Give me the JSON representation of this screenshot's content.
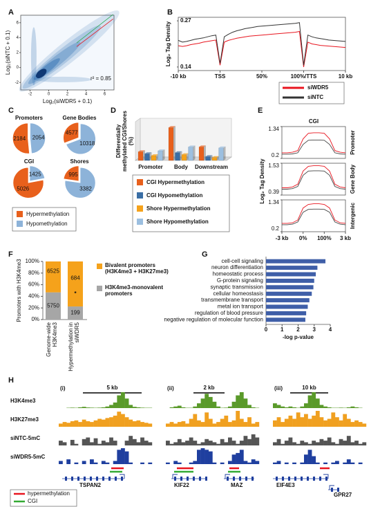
{
  "chart_data": [
    {
      "label": "A",
      "type": "density",
      "xlabel": "Log₂(siWDR5 + 0.1)",
      "ylabel": "Log₂(siNTC + 0.1)",
      "xlim": [
        -3,
        7
      ],
      "ylim": [
        -3,
        7
      ],
      "xticks": [
        -2,
        0,
        2,
        4,
        6
      ],
      "yticks": [
        -2,
        0,
        2,
        4,
        6
      ],
      "annotation": "r² = 0.85"
    },
    {
      "label": "B",
      "type": "line",
      "ylabel": "Log₂ Tag Density",
      "x": [
        0,
        0.1,
        0.2,
        0.3,
        0.4,
        0.5,
        0.6,
        0.7,
        0.8,
        0.9,
        1,
        1.1,
        1.2,
        1.3,
        1.4,
        1.5,
        1.6,
        1.7,
        1.8,
        1.9,
        2,
        2.1,
        2.2,
        2.3,
        2.4,
        2.5,
        2.6,
        2.7,
        2.8,
        2.9,
        3,
        3.1,
        3.2,
        3.3,
        3.4,
        3.5,
        3.6,
        3.7,
        3.8,
        3.9,
        4
      ],
      "xlim": [
        0,
        4
      ],
      "xticks": [
        {
          "value": 0,
          "label": "-10 kb"
        },
        {
          "value": 1,
          "label": "TSS"
        },
        {
          "value": 2,
          "label": "50%"
        },
        {
          "value": 3,
          "label": "100%/TTS"
        },
        {
          "value": 4,
          "label": "10 kb"
        }
      ],
      "ylim": [
        0.13,
        0.28
      ],
      "yticks": [
        0.14,
        0.27
      ],
      "series": [
        {
          "name": "siWDR5",
          "color": "#e8141e",
          "values": [
            0.2,
            0.198,
            0.2,
            0.203,
            0.205,
            0.207,
            0.21,
            0.212,
            0.214,
            0.216,
            0.145,
            0.21,
            0.215,
            0.218,
            0.221,
            0.223,
            0.225,
            0.227,
            0.228,
            0.229,
            0.23,
            0.231,
            0.232,
            0.233,
            0.234,
            0.235,
            0.236,
            0.237,
            0.238,
            0.24,
            0.14,
            0.21,
            0.205,
            0.203,
            0.201,
            0.2,
            0.199,
            0.198,
            0.197,
            0.196,
            0.195
          ]
        },
        {
          "name": "siNTC",
          "color": "#333333",
          "values": [
            0.215,
            0.21,
            0.212,
            0.215,
            0.218,
            0.22,
            0.222,
            0.225,
            0.228,
            0.23,
            0.15,
            0.225,
            0.232,
            0.238,
            0.242,
            0.245,
            0.248,
            0.25,
            0.252,
            0.254,
            0.255,
            0.256,
            0.257,
            0.258,
            0.259,
            0.26,
            0.261,
            0.262,
            0.263,
            0.265,
            0.145,
            0.23,
            0.225,
            0.222,
            0.22,
            0.218,
            0.216,
            0.215,
            0.214,
            0.213,
            0.212
          ]
        }
      ]
    },
    {
      "label": "C",
      "type": "pie",
      "series_names": [
        "Hypermethylation",
        "Hypomethylation"
      ],
      "colors": [
        "#e8601c",
        "#8db3d9"
      ],
      "pies": [
        {
          "title": "Promoters",
          "values": [
            2184,
            2054
          ]
        },
        {
          "title": "Gene Bodies",
          "values": [
            4577,
            10318
          ]
        },
        {
          "title": "CGI",
          "values": [
            5026,
            1425
          ]
        },
        {
          "title": "Shores",
          "values": [
            995,
            3382
          ]
        }
      ]
    },
    {
      "label": "D",
      "type": "bar3d",
      "ylabel": "Differentially methylated CGI/Shores (%)",
      "categories": [
        "Promoter",
        "Body",
        "Downstream"
      ],
      "ylim": [
        0,
        40
      ],
      "series": [
        {
          "name": "CGI Hypermethylation",
          "color": "#e8601c",
          "values": [
            9,
            34,
            14
          ]
        },
        {
          "name": "CGI Hypomethylation",
          "color": "#3a6ea5",
          "values": [
            7,
            8,
            4
          ]
        },
        {
          "name": "Shore Hypermethylation",
          "color": "#f5a21b",
          "values": [
            5,
            6,
            3
          ]
        },
        {
          "name": "Shore Hypomethylation",
          "color": "#9cbfe0",
          "values": [
            10,
            14,
            13
          ]
        }
      ]
    },
    {
      "label": "E",
      "type": "line",
      "title": "CGI",
      "ylabel": "Log₂ Tag Density",
      "x": [
        0,
        0.25,
        0.5,
        0.75,
        1,
        1.25,
        1.5,
        1.75,
        2,
        2.25,
        2.5,
        2.75,
        3
      ],
      "xlim": [
        0,
        3
      ],
      "xticks": [
        {
          "value": 0,
          "label": "-3 kb"
        },
        {
          "value": 1,
          "label": "0%"
        },
        {
          "value": 2,
          "label": "100%"
        },
        {
          "value": 3,
          "label": "3 kb"
        }
      ],
      "panels": [
        {
          "name": "Promoter",
          "ylim": [
            0.2,
            1.34
          ],
          "yticks": [
            0.2,
            1.34
          ],
          "series": [
            {
              "color": "#e8141e",
              "values": [
                0.4,
                0.4,
                0.42,
                0.48,
                0.9,
                1.1,
                1.12,
                1.12,
                1.1,
                0.9,
                0.48,
                0.42,
                0.4
              ]
            },
            {
              "color": "#444444",
              "values": [
                0.35,
                0.35,
                0.36,
                0.4,
                0.7,
                0.85,
                0.86,
                0.86,
                0.85,
                0.7,
                0.4,
                0.36,
                0.35
              ]
            }
          ]
        },
        {
          "name": "Gene Body",
          "ylim": [
            0.39,
            1.53
          ],
          "yticks": [
            0.39,
            1.53
          ],
          "series": [
            {
              "color": "#e8141e",
              "values": [
                0.65,
                0.65,
                0.68,
                0.78,
                1.25,
                1.42,
                1.44,
                1.44,
                1.42,
                1.25,
                0.78,
                0.68,
                0.65
              ]
            },
            {
              "color": "#444444",
              "values": [
                0.6,
                0.6,
                0.62,
                0.7,
                1.1,
                1.25,
                1.26,
                1.26,
                1.25,
                1.1,
                0.7,
                0.62,
                0.6
              ]
            }
          ]
        },
        {
          "name": "Intergenic",
          "ylim": [
            0.2,
            1.34
          ],
          "yticks": [
            0.2,
            1.34
          ],
          "series": [
            {
              "color": "#e8141e",
              "values": [
                0.5,
                0.5,
                0.52,
                0.62,
                1.05,
                1.18,
                1.2,
                1.2,
                1.18,
                1.05,
                0.62,
                0.52,
                0.5
              ]
            },
            {
              "color": "#444444",
              "values": [
                0.45,
                0.45,
                0.47,
                0.55,
                0.9,
                1.0,
                1.01,
                1.01,
                1.0,
                0.9,
                0.55,
                0.47,
                0.45
              ]
            }
          ]
        }
      ]
    },
    {
      "label": "F",
      "type": "bar",
      "stacked": "percent",
      "ylabel": "Promoters with H3K4me3",
      "categories": [
        "Genome-wide H3K4me3",
        "Hypermethylation in siWDR5"
      ],
      "series": [
        {
          "name": "H3K4me3-monovalent promoters",
          "color": "#a6a6a6",
          "values": [
            5750,
            199
          ]
        },
        {
          "name": "Bivalent promoters (H3K4me3 + H3K27me3)",
          "color": "#f5a21b",
          "values": [
            6525,
            684
          ]
        }
      ],
      "ylim": [
        0,
        100
      ],
      "yticks": [
        {
          "value": 0,
          "label": "0%"
        },
        {
          "value": 20,
          "label": "20%"
        },
        {
          "value": 40,
          "label": "40%"
        },
        {
          "value": 60,
          "label": "60%"
        },
        {
          "value": 80,
          "label": "80%"
        },
        {
          "value": 100,
          "label": "100%"
        }
      ],
      "annotation": "*"
    },
    {
      "label": "G",
      "type": "barh",
      "xlabel": "-log p-value",
      "color": "#3f5fa8",
      "categories": [
        "cell-cell signaling",
        "neuron differentiation",
        "homeostatic process",
        "G-protein signaling",
        "synaptic transmission",
        "cellular homeostasis",
        "transmembrane transport",
        "metal ion transport",
        "regulation of blood pressure",
        "negative regulation of molecular function"
      ],
      "values": [
        3.7,
        3.2,
        3.1,
        3.0,
        2.95,
        2.85,
        2.7,
        2.6,
        2.5,
        2.45
      ],
      "xlim": [
        0,
        4
      ],
      "xticks": [
        0,
        1,
        2,
        3,
        4
      ]
    },
    {
      "label": "H",
      "type": "tracks",
      "tracks": [
        "H3K4me3",
        "H3K27me3",
        "siNTC-5mC",
        "siWDR5-5mC"
      ],
      "colors": [
        "#5a9a2a",
        "#f0a020",
        "#555555",
        "#1f3f9f"
      ],
      "legend": [
        {
          "name": "hypermethylation",
          "color": "#e8141e"
        },
        {
          "name": "CGI",
          "color": "#33aa33"
        }
      ],
      "columns": [
        {
          "label": "(i)",
          "scale": "5 kb",
          "genes": [
            "TSPAN2"
          ],
          "values": [
            [
              0,
              0,
              0.02,
              0.03,
              0.02,
              0.05,
              0.08,
              0.04,
              0.03,
              0.02,
              0.03,
              0.05,
              0.1,
              0.2,
              0.35,
              0.8,
              1,
              0.6,
              0.2,
              0.08,
              0.05,
              0.03,
              0.02,
              0.02
            ],
            [
              0.2,
              0.3,
              0.25,
              0.35,
              0.4,
              0.3,
              0.45,
              0.35,
              0.3,
              0.4,
              0.5,
              0.45,
              0.55,
              0.6,
              0.7,
              0.95,
              0.8,
              0.6,
              0.45,
              0.35,
              0.4,
              0.3,
              0.25,
              0.2
            ],
            [
              0.3,
              0.2,
              0,
              0.35,
              0.1,
              0,
              0.4,
              0.5,
              0.2,
              0.45,
              0.1,
              0.3,
              0.2,
              0.5,
              0.3,
              0,
              0,
              0.3,
              0.6,
              0.4,
              0.2,
              0.5,
              0.3,
              0.2
            ],
            [
              0.2,
              0,
              0.3,
              0,
              0.1,
              0,
              0.2,
              0,
              0.3,
              0.1,
              0,
              0.2,
              0.1,
              0,
              0.2,
              0.9,
              1,
              0.8,
              0.1,
              0,
              0,
              0.1,
              0,
              0.1
            ]
          ]
        },
        {
          "label": "(ii)",
          "scale": "2 kb",
          "genes": [
            "KIF22",
            "MAZ"
          ],
          "values": [
            [
              0,
              0.05,
              0.1,
              0.15,
              0.05,
              0.02,
              0.02,
              0.1,
              0.3,
              0.6,
              0.9,
              0.7,
              0.4,
              0.1,
              0.02,
              0.03,
              0.1,
              0.4,
              0.8,
              1,
              0.6,
              0.2,
              0.05,
              0.02
            ],
            [
              0.2,
              0.3,
              0.2,
              0.3,
              0.35,
              0.2,
              0.5,
              0.8,
              0.4,
              0.3,
              0.9,
              0.5,
              0.2,
              0.3,
              0.5,
              0.7,
              0.3,
              0.4,
              1,
              0.5,
              0.3,
              0.6,
              0.2,
              0.3
            ],
            [
              0.3,
              0.1,
              0.2,
              0.4,
              0.2,
              0.3,
              0.5,
              0.3,
              0.1,
              0.2,
              0.4,
              0.3,
              0.2,
              0.1,
              0.4,
              0.2,
              0.5,
              0.3,
              0.1,
              0.3,
              0.6,
              0.4,
              0.7,
              0.5
            ],
            [
              0.1,
              0,
              0.2,
              0.1,
              0,
              0,
              0.1,
              0.2,
              0.9,
              1,
              0.9,
              0.8,
              0.1,
              0,
              0.1,
              0,
              0.2,
              0.6,
              0.7,
              0.9,
              0.2,
              0.1,
              0.3,
              0.2
            ]
          ]
        },
        {
          "label": "(iii)",
          "scale": "10 kb",
          "genes": [
            "EIF4E3",
            "GPR27"
          ],
          "values": [
            [
              0.3,
              0.2,
              0.1,
              0.05,
              0.1,
              0.05,
              0.02,
              0.1,
              0.3,
              0.8,
              1,
              0.6,
              0.2,
              0.1,
              0.05,
              0.02,
              0.02,
              0.03,
              0.02,
              0.05,
              0.1,
              0.05,
              0.02,
              0
            ],
            [
              0.4,
              0.6,
              0.3,
              0.5,
              0.7,
              0.5,
              0.9,
              0.6,
              0.8,
              0.5,
              0.7,
              1,
              0.6,
              0.4,
              0.5,
              0.9,
              0.6,
              0.4,
              0.8,
              0.5,
              0.3,
              0.4,
              0.3,
              0.2
            ],
            [
              0.2,
              0.4,
              0.1,
              0.3,
              0.5,
              0.2,
              0.1,
              0.3,
              0.2,
              0.1,
              0.3,
              0.2,
              0.4,
              0.3,
              0.5,
              0.2,
              0.1,
              0.4,
              0.3,
              0.6,
              0.2,
              0.3,
              0.1,
              0.2
            ],
            [
              0.1,
              0.2,
              0,
              0.1,
              0,
              0.1,
              0,
              0.1,
              0.6,
              0.9,
              0.5,
              0.1,
              0,
              0.1,
              0,
              0.1,
              0.2,
              0,
              0.1,
              0.3,
              0.1,
              0,
              0.1,
              0
            ]
          ]
        }
      ]
    }
  ]
}
